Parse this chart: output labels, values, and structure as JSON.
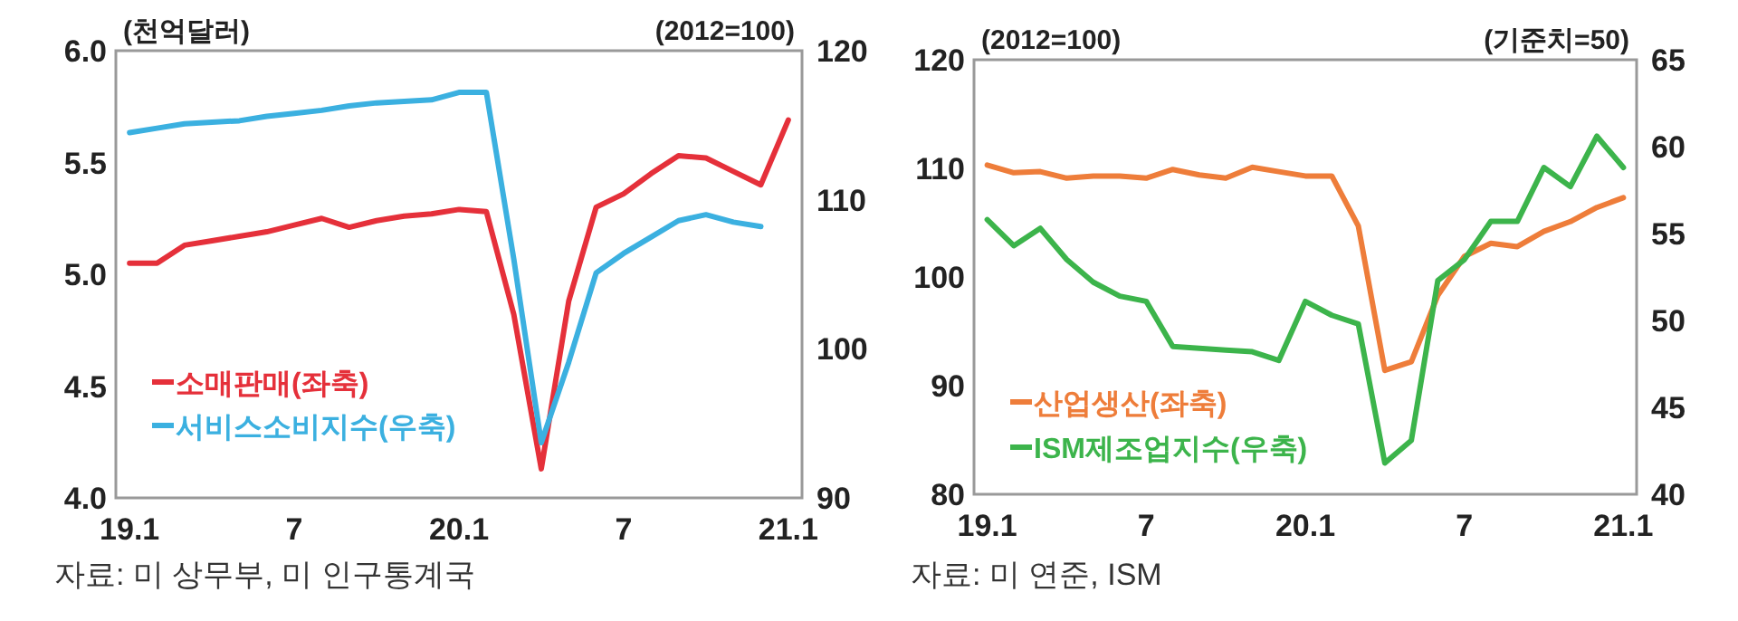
{
  "chart_data": [
    {
      "type": "line",
      "ylabel": "(천억달러)",
      "y2label": "(2012=100)",
      "legend": "bottom left",
      "categories": [
        "19.1",
        null,
        null,
        null,
        null,
        null,
        "7",
        null,
        null,
        null,
        null,
        null,
        "20.1",
        null,
        null,
        null,
        null,
        null,
        "7",
        null,
        null,
        null,
        null,
        null,
        "21.1"
      ],
      "ylim": [
        4,
        6
      ],
      "yticks": [
        {
          "value": 4,
          "label": "4.0"
        },
        {
          "value": 4.5,
          "label": "4.5"
        },
        {
          "value": 5,
          "label": "5.0"
        },
        {
          "value": 5.5,
          "label": "5.5"
        },
        {
          "value": 6,
          "label": "6.0"
        }
      ],
      "y2lim": [
        90,
        120
      ],
      "y2ticks": [
        90,
        100,
        110,
        120
      ],
      "series": [
        {
          "name": "소매판매(좌축)",
          "color": "#e5303a",
          "values": [
            5.05,
            5.05,
            5.13,
            5.15,
            5.17,
            5.19,
            5.22,
            5.25,
            5.21,
            5.24,
            5.26,
            5.27,
            5.29,
            5.28,
            4.82,
            4.13,
            4.88,
            5.3,
            5.36,
            5.45,
            5.53,
            5.52,
            5.46,
            5.4,
            5.69
          ]
        },
        {
          "name": "서비스소비지수(우축)",
          "color": "#3bb0e0",
          "axis": "y2",
          "values": [
            114.5,
            114.8,
            115.1,
            115.2,
            115.3,
            115.6,
            115.8,
            116.0,
            116.3,
            116.5,
            116.6,
            116.7,
            117.2,
            117.2,
            106.0,
            93.7,
            99.1,
            105.1,
            106.4,
            107.5,
            108.6,
            109.0,
            108.5,
            108.2,
            null
          ]
        }
      ],
      "annotations": [
        "자료: 미 상무부, 미 인구통계국"
      ]
    },
    {
      "type": "line",
      "ylabel": "(2012=100)",
      "y2label": "(기준치=50)",
      "legend": "bottom left",
      "categories": [
        "19.1",
        null,
        null,
        null,
        null,
        null,
        "7",
        null,
        null,
        null,
        null,
        null,
        "20.1",
        null,
        null,
        null,
        null,
        null,
        "7",
        null,
        null,
        null,
        null,
        null,
        "21.1"
      ],
      "ylim": [
        80,
        120
      ],
      "yticks": [
        80,
        90,
        100,
        110,
        120
      ],
      "y2lim": [
        40,
        65
      ],
      "y2ticks": [
        40,
        45,
        50,
        55,
        60,
        65
      ],
      "series": [
        {
          "name": "산업생산(좌축)",
          "color": "#ee7d3a",
          "values": [
            110.3,
            109.6,
            109.7,
            109.1,
            109.3,
            109.3,
            109.1,
            109.9,
            109.4,
            109.1,
            110.1,
            109.7,
            109.3,
            109.3,
            104.7,
            91.4,
            92.2,
            98.3,
            101.9,
            103.1,
            102.8,
            104.2,
            105.1,
            106.4,
            107.3
          ]
        },
        {
          "name": "ISM제조업지수(우축)",
          "color": "#3cb44b",
          "axis": "y2",
          "values": [
            55.8,
            54.3,
            55.3,
            53.5,
            52.2,
            51.4,
            51.1,
            48.5,
            48.4,
            48.3,
            48.2,
            47.7,
            51.1,
            50.3,
            49.8,
            41.8,
            43.1,
            52.3,
            53.5,
            55.7,
            55.7,
            58.8,
            57.7,
            60.6,
            58.8
          ]
        }
      ],
      "annotations": [
        "자료: 미 연준, ISM"
      ]
    }
  ]
}
